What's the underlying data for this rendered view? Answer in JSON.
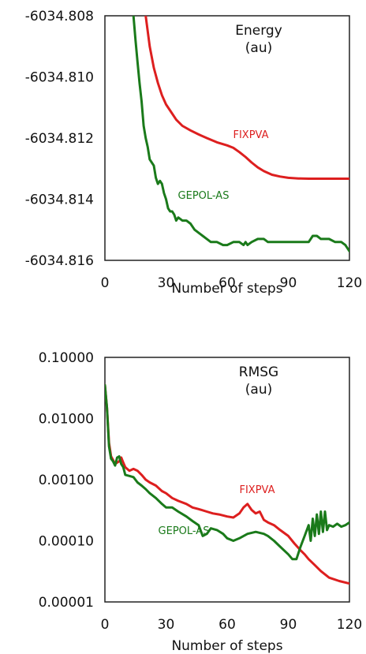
{
  "chart_data": [
    {
      "type": "line",
      "title": "Energy",
      "subtitle": "(au)",
      "xlabel": "Number of steps",
      "ylabel": "",
      "xlim": [
        0,
        120
      ],
      "ylim": [
        -6034.816,
        -6034.808
      ],
      "xticks": [
        "0",
        "30",
        "60",
        "90",
        "120"
      ],
      "yticks": [
        "-6034.808",
        "-6034.810",
        "-6034.812",
        "-6034.814",
        "-6034.816"
      ],
      "grid": false,
      "series": [
        {
          "name": "FIXPVA",
          "color": "#dd1f1f",
          "x": [
            20,
            22,
            24,
            26,
            28,
            30,
            32,
            35,
            38,
            42,
            46,
            50,
            55,
            60,
            63,
            66,
            69,
            72,
            75,
            78,
            82,
            86,
            90,
            95,
            100,
            110,
            120
          ],
          "y": [
            -6034.808,
            -6034.809,
            -6034.8097,
            -6034.8102,
            -6034.8106,
            -6034.8109,
            -6034.8111,
            -6034.8114,
            -6034.8116,
            -6034.81175,
            -6034.81188,
            -6034.812,
            -6034.81214,
            -6034.81224,
            -6034.81232,
            -6034.81246,
            -6034.81262,
            -6034.8128,
            -6034.81296,
            -6034.81308,
            -6034.8132,
            -6034.81326,
            -6034.8133,
            -6034.81332,
            -6034.81333,
            -6034.81333,
            -6034.81333
          ]
        },
        {
          "name": "GEPOL-AS",
          "color": "#1a7a1a",
          "x": [
            14,
            15,
            16,
            17,
            18,
            19,
            20,
            21,
            22,
            23,
            24,
            25,
            26,
            27,
            28,
            29,
            30,
            31,
            32,
            33,
            34,
            35,
            36,
            38,
            40,
            42,
            44,
            46,
            48,
            50,
            52,
            55,
            58,
            60,
            63,
            66,
            68,
            69,
            70,
            72,
            75,
            78,
            80,
            85,
            90,
            95,
            100,
            102,
            104,
            106,
            108,
            110,
            113,
            116,
            118,
            120
          ],
          "y": [
            -6034.808,
            -6034.8088,
            -6034.8095,
            -6034.8102,
            -6034.8108,
            -6034.8116,
            -6034.812,
            -6034.8123,
            -6034.8127,
            -6034.8128,
            -6034.8129,
            -6034.8133,
            -6034.8135,
            -6034.8134,
            -6034.8135,
            -6034.8138,
            -6034.814,
            -6034.8143,
            -6034.8144,
            -6034.8144,
            -6034.8145,
            -6034.8147,
            -6034.8146,
            -6034.8147,
            -6034.8147,
            -6034.8148,
            -6034.815,
            -6034.8151,
            -6034.8152,
            -6034.8153,
            -6034.8154,
            -6034.8154,
            -6034.8155,
            -6034.8155,
            -6034.8154,
            -6034.8154,
            -6034.8155,
            -6034.8154,
            -6034.8155,
            -6034.8154,
            -6034.8153,
            -6034.8153,
            -6034.8154,
            -6034.8154,
            -6034.8154,
            -6034.8154,
            -6034.8154,
            -6034.8152,
            -6034.8152,
            -6034.8153,
            -6034.8153,
            -6034.8153,
            -6034.8154,
            -6034.8154,
            -6034.8155,
            -6034.8157
          ]
        }
      ]
    },
    {
      "type": "line",
      "title": "RMSG",
      "subtitle": "(au)",
      "xlabel": "Number of steps",
      "ylabel": "",
      "xlim": [
        0,
        120
      ],
      "ylim": [
        1e-05,
        0.1
      ],
      "yscale": "log",
      "xticks": [
        "0",
        "30",
        "60",
        "90",
        "120"
      ],
      "yticks": [
        "0.10000",
        "0.01000",
        "0.00100",
        "0.00010",
        "0.00001"
      ],
      "ytick_values": [
        0.1,
        0.01,
        0.001,
        0.0001,
        1e-05
      ],
      "grid": false,
      "series": [
        {
          "name": "FIXPVA",
          "color": "#dd1f1f",
          "x": [
            0,
            1,
            2,
            3,
            4,
            5,
            6,
            7,
            8,
            9,
            10,
            12,
            14,
            16,
            18,
            20,
            22,
            25,
            28,
            30,
            33,
            36,
            40,
            43,
            46,
            50,
            53,
            56,
            60,
            63,
            66,
            68,
            70,
            72,
            74,
            76,
            78,
            80,
            83,
            86,
            90,
            93,
            96,
            98,
            100,
            103,
            106,
            110,
            115,
            120
          ],
          "y": [
            0.035,
            0.015,
            0.004,
            0.0024,
            0.0021,
            0.0018,
            0.0019,
            0.002,
            0.0023,
            0.0019,
            0.0016,
            0.0014,
            0.0015,
            0.0014,
            0.0012,
            0.001,
            0.0009,
            0.0008,
            0.00065,
            0.0006,
            0.0005,
            0.00045,
            0.0004,
            0.00035,
            0.00033,
            0.0003,
            0.00028,
            0.00027,
            0.00025,
            0.00024,
            0.00028,
            0.00035,
            0.0004,
            0.00032,
            0.00028,
            0.0003,
            0.00022,
            0.0002,
            0.00018,
            0.00015,
            0.00012,
            9e-05,
            7e-05,
            6e-05,
            5e-05,
            4e-05,
            3.2e-05,
            2.5e-05,
            2.2e-05,
            2e-05
          ]
        },
        {
          "name": "GEPOL-AS",
          "color": "#1a7a1a",
          "x": [
            0,
            1,
            2,
            3,
            4,
            5,
            6,
            7,
            8,
            9,
            10,
            12,
            14,
            16,
            18,
            20,
            22,
            25,
            28,
            30,
            33,
            36,
            40,
            43,
            46,
            48,
            50,
            52,
            55,
            58,
            60,
            63,
            66,
            70,
            74,
            78,
            80,
            83,
            86,
            90,
            92,
            94,
            96,
            98,
            100,
            101,
            102,
            103,
            104,
            105,
            106,
            107,
            108,
            109,
            110,
            112,
            114,
            116,
            118,
            120
          ],
          "y": [
            0.035,
            0.015,
            0.0035,
            0.0022,
            0.002,
            0.0017,
            0.0023,
            0.0024,
            0.0018,
            0.0016,
            0.0012,
            0.00115,
            0.0011,
            0.0009,
            0.0008,
            0.0007,
            0.0006,
            0.0005,
            0.0004,
            0.00035,
            0.00035,
            0.0003,
            0.00025,
            0.00021,
            0.00018,
            0.00012,
            0.00013,
            0.00016,
            0.00015,
            0.00013,
            0.00011,
            0.0001,
            0.00011,
            0.00013,
            0.00014,
            0.00013,
            0.00012,
            0.0001,
            8e-05,
            6e-05,
            5e-05,
            5e-05,
            8e-05,
            0.00012,
            0.00018,
            0.0001,
            0.00023,
            0.00012,
            0.00027,
            0.00013,
            0.0003,
            0.00014,
            0.0003,
            0.00015,
            0.00018,
            0.00017,
            0.00019,
            0.00017,
            0.00018,
            0.0002
          ]
        }
      ]
    }
  ]
}
